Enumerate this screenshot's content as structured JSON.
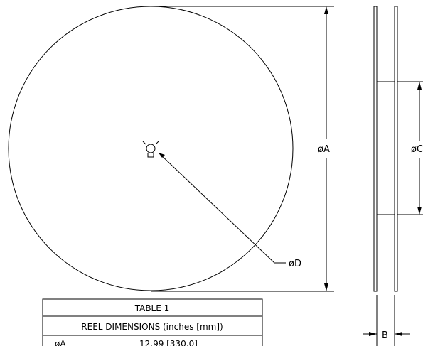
{
  "labels": {
    "diameter_a": "øA",
    "diameter_c": "øC",
    "diameter_d": "øD",
    "width_b": "B"
  },
  "table": {
    "title": "TABLE 1",
    "subtitle": "REEL DIMENSIONS (inches [mm])",
    "rows": [
      {
        "label": "øA",
        "value": "12.99 [330.0]"
      }
    ]
  }
}
